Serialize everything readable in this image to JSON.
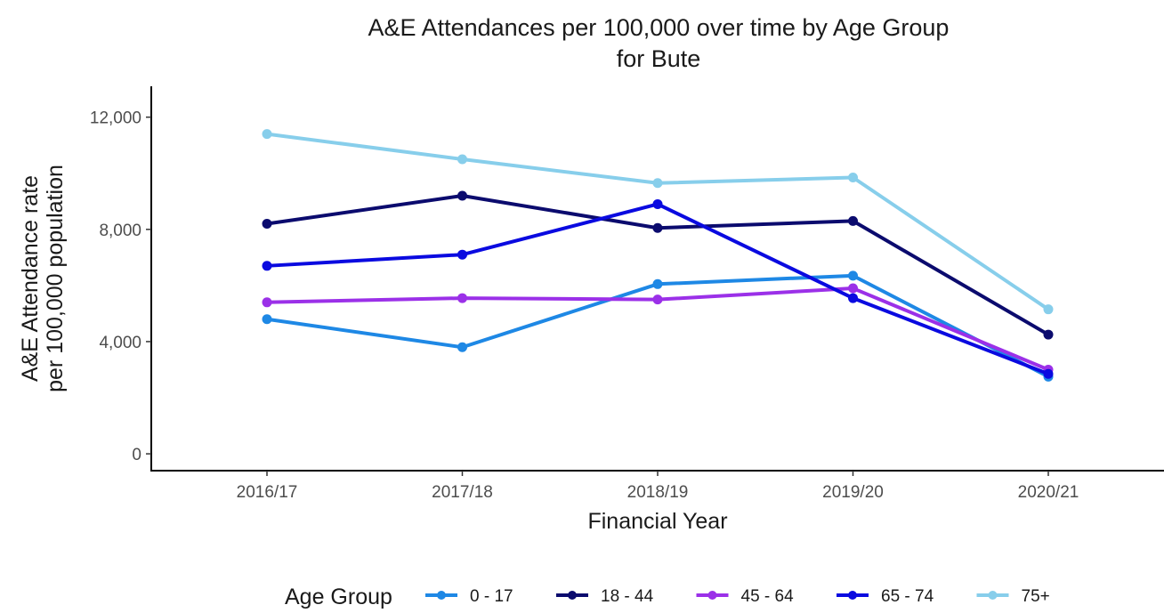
{
  "chart_data": {
    "type": "line",
    "title": "A&E Attendances per 100,000 over time by Age Group",
    "subtitle": "for Bute",
    "xlabel": "Financial Year",
    "ylabel_line1": "A&E Attendance rate",
    "ylabel_line2": "per 100,000 population",
    "categories": [
      "2016/17",
      "2017/18",
      "2018/19",
      "2019/20",
      "2020/21"
    ],
    "ylim": [
      -600,
      13100
    ],
    "yticks": [
      0,
      4000,
      8000,
      12000
    ],
    "ytick_labels": [
      "0",
      "4,000",
      "8,000",
      "12,000"
    ],
    "grid": false,
    "legend_position": "bottom",
    "legend_title": "Age Group",
    "series": [
      {
        "name": "0 - 17",
        "color": "#1E88E5",
        "values": [
          4800,
          3800,
          6050,
          6350,
          2750
        ]
      },
      {
        "name": "18 - 44",
        "color": "#0B0B6E",
        "values": [
          8200,
          9200,
          8050,
          8300,
          4250
        ]
      },
      {
        "name": "45 - 64",
        "color": "#9B30E8",
        "values": [
          5400,
          5550,
          5500,
          5900,
          3000
        ]
      },
      {
        "name": "65 - 74",
        "color": "#0A0AE0",
        "values": [
          6700,
          7100,
          8900,
          5550,
          2850
        ]
      },
      {
        "name": "75+",
        "color": "#87CEEB",
        "values": [
          11400,
          10500,
          9650,
          9850,
          5150
        ]
      }
    ]
  }
}
